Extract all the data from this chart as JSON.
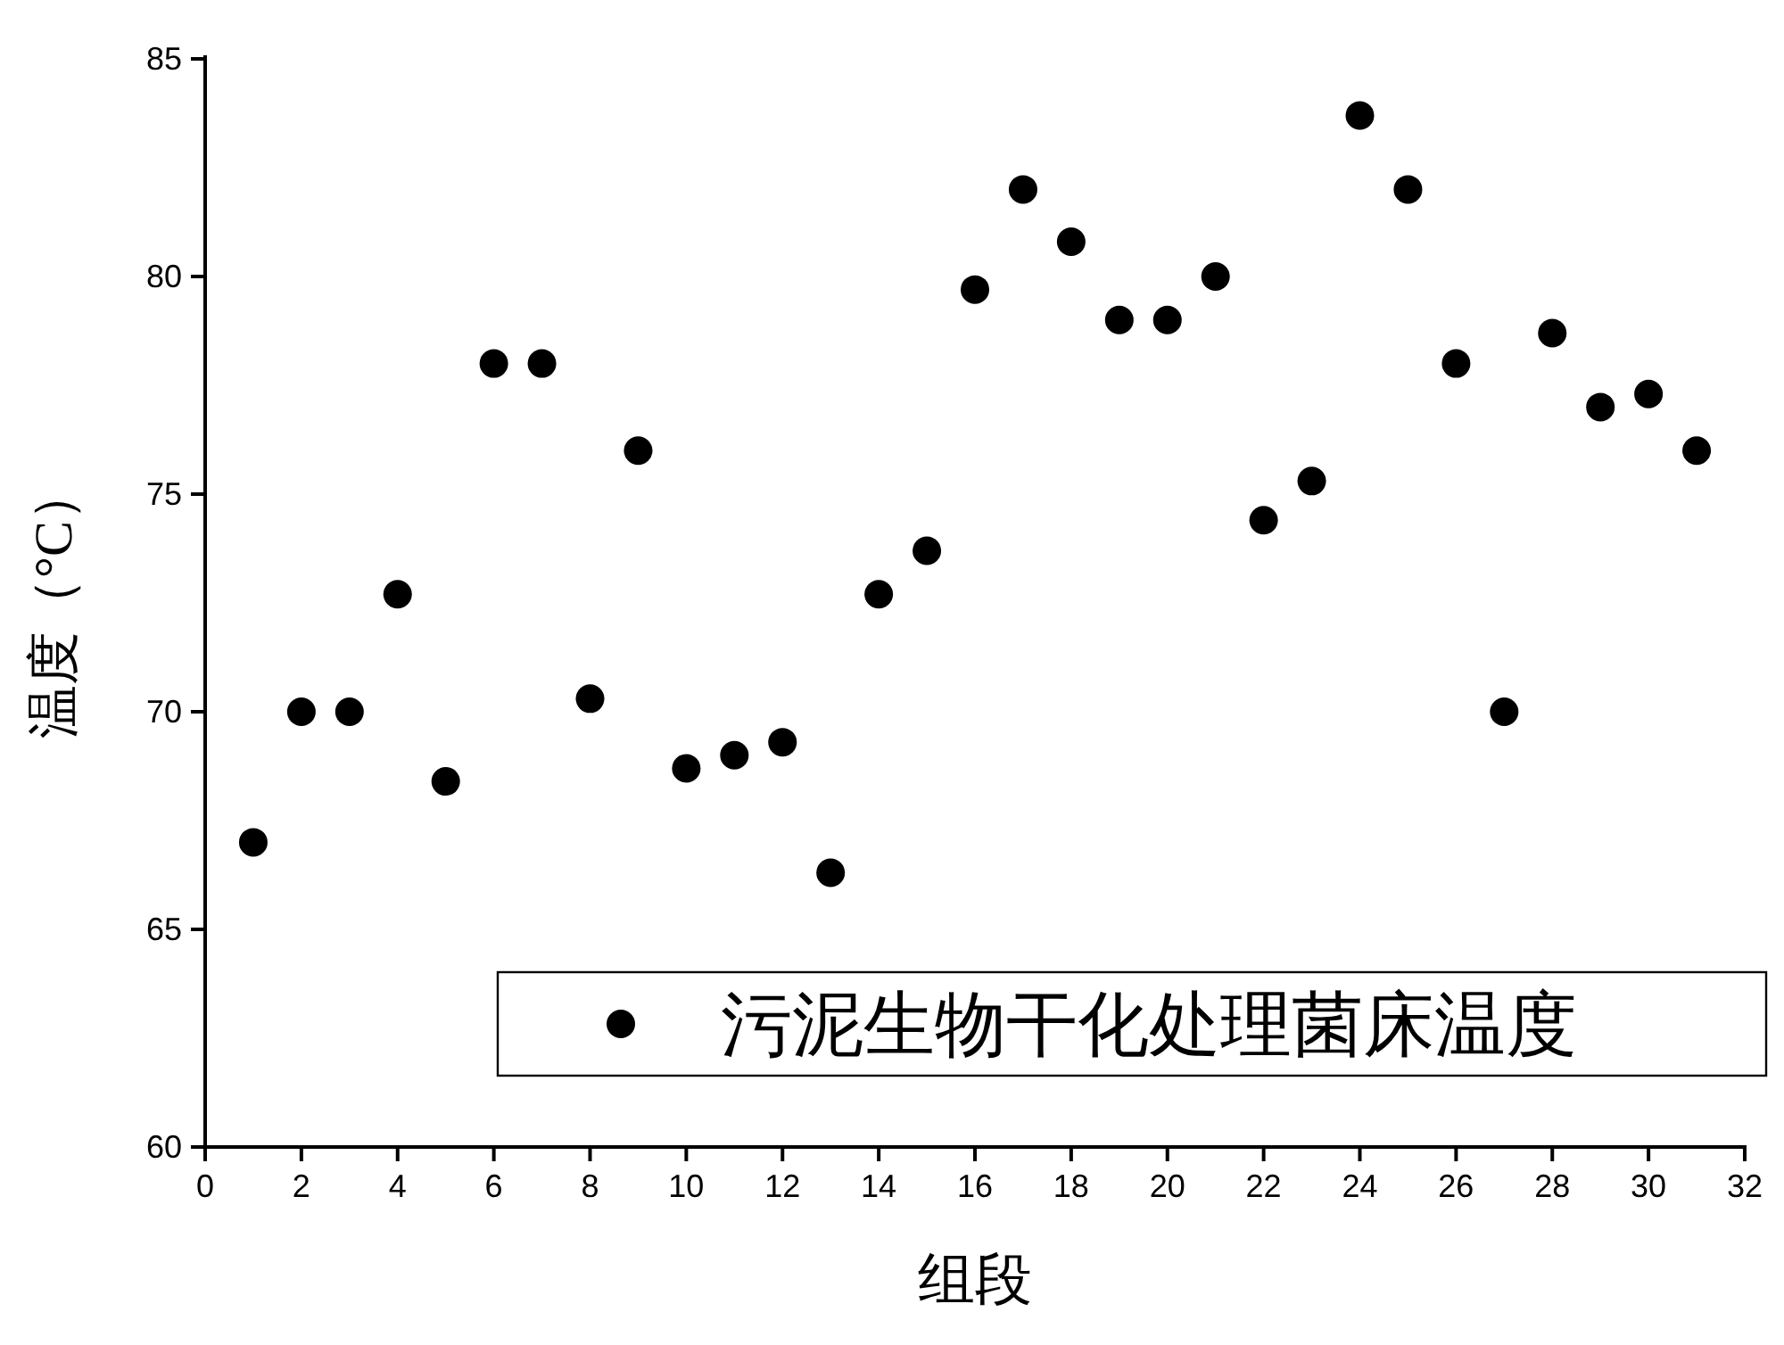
{
  "chart_data": {
    "type": "scatter",
    "xlabel": "组段",
    "ylabel": "温度（°C）",
    "x": [
      1,
      2,
      3,
      4,
      5,
      6,
      7,
      8,
      9,
      10,
      11,
      12,
      13,
      14,
      15,
      16,
      17,
      18,
      19,
      20,
      21,
      22,
      23,
      24,
      25,
      26,
      27,
      28,
      29,
      30,
      31
    ],
    "series": [
      {
        "name": "污泥生物干化处理菌床温度",
        "color": "#000000",
        "values": [
          67.0,
          70.0,
          70.0,
          72.7,
          68.4,
          78.0,
          78.0,
          70.3,
          76.0,
          68.7,
          69.0,
          69.3,
          66.3,
          72.7,
          73.7,
          79.7,
          82.0,
          80.8,
          79.0,
          79.0,
          80.0,
          74.4,
          75.3,
          83.7,
          82.0,
          78.0,
          70.0,
          78.7,
          77.0,
          77.3,
          76.0
        ]
      }
    ],
    "xlim": [
      0,
      32
    ],
    "xticks": [
      0,
      2,
      4,
      6,
      8,
      10,
      12,
      14,
      16,
      18,
      20,
      22,
      24,
      26,
      28,
      30,
      32
    ],
    "ylim": [
      60,
      85
    ],
    "yticks": [
      60,
      65,
      70,
      75,
      80,
      85
    ],
    "legend": "bottom right",
    "marker": "circle",
    "grid": false
  }
}
